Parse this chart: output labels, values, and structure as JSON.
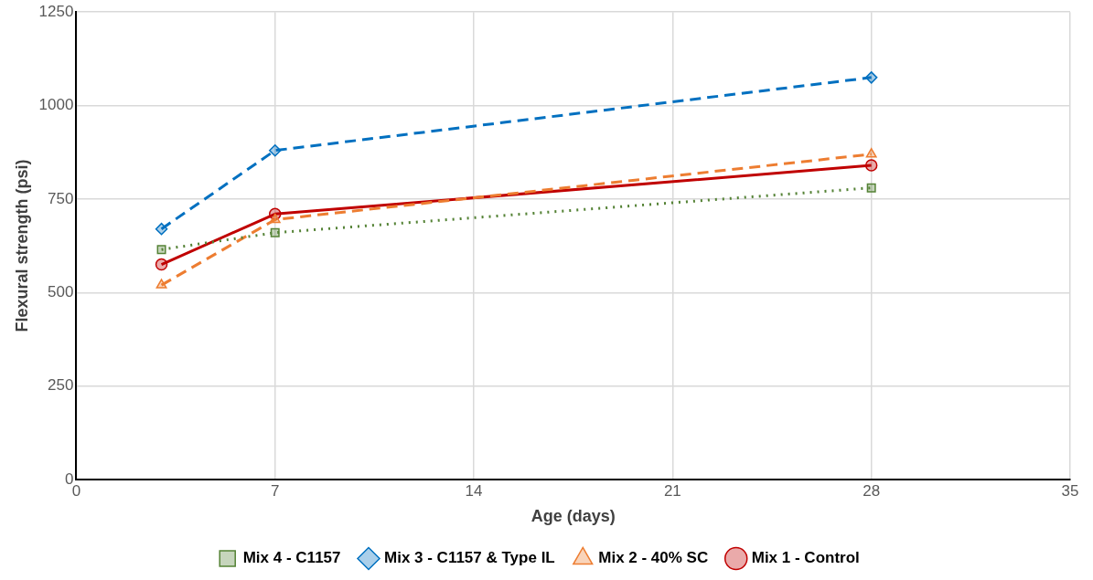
{
  "chart_data": {
    "type": "line",
    "xlabel": "Age (days)",
    "ylabel": "Flexural strength (psi)",
    "x": [
      3,
      7,
      28
    ],
    "series": [
      {
        "name": "Mix 1 - Control",
        "color": "#c00000",
        "marker": "circle",
        "line_style": "solid",
        "values": [
          575,
          710,
          840
        ]
      },
      {
        "name": "Mix 2 - 40% SC",
        "color": "#ed7d31",
        "marker": "triangle",
        "line_style": "dashed",
        "values": [
          520,
          695,
          870
        ]
      },
      {
        "name": "Mix 3 - C1157 & Type IL",
        "color": "#0070c0",
        "marker": "diamond",
        "line_style": "dashed",
        "values": [
          670,
          880,
          1075
        ]
      },
      {
        "name": "Mix 4 - C1157",
        "color": "#548235",
        "marker": "square",
        "line_style": "dotted",
        "values": [
          615,
          660,
          780
        ]
      }
    ],
    "xlim": [
      0,
      35
    ],
    "xticks": [
      0,
      7,
      14,
      21,
      28,
      35
    ],
    "ylim": [
      0,
      1250
    ],
    "yticks": [
      0,
      250,
      500,
      750,
      1000,
      1250
    ],
    "grid": true,
    "legend": "bottom"
  }
}
